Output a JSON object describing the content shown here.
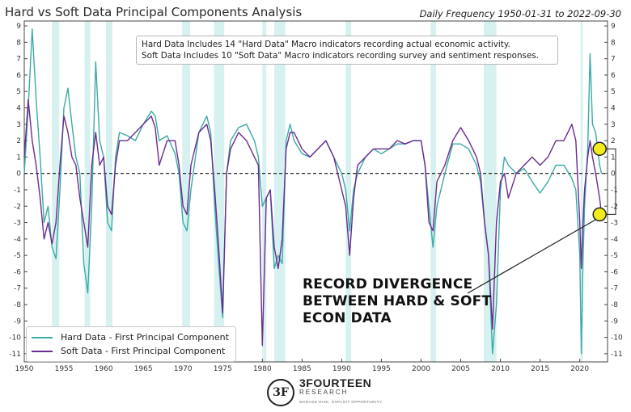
{
  "header": {
    "title": "Hard vs Soft Data Principal Components Analysis",
    "range": "Daily Frequency 1950-01-31 to 2022-09-30"
  },
  "note": {
    "line1": "Hard Data Includes 14 \"Hard Data\" Macro indicators recording actual economic activity.",
    "line2": "Soft Data Includes 10 \"Soft Data\" Macro indicators recording survey and sentiment responses."
  },
  "annotation": {
    "line1": "RECORD DIVERGENCE",
    "line2": "BETWEEN HARD & SOFT",
    "line3": "ECON DATA"
  },
  "logo": {
    "mark": "3F",
    "name": "3FOURTEEN",
    "sub": "RESEARCH",
    "tagline": "MANAGE RISK. EXPLOIT OPPORTUNITY."
  },
  "colors": {
    "hard": "#3aaaa6",
    "soft": "#6a2c91",
    "shade": "#d6f1ef",
    "highlight": "#f2ec1c"
  },
  "chart_data": {
    "type": "line",
    "xlim": [
      1950,
      2023.5
    ],
    "ylim": [
      -11.5,
      9.3
    ],
    "x_ticks": [
      1950,
      1955,
      1960,
      1965,
      1970,
      1975,
      1980,
      1985,
      1990,
      1995,
      2000,
      2005,
      2010,
      2015,
      2020
    ],
    "y_ticks": [
      -11,
      -10,
      -9,
      -8,
      -7,
      -6,
      -5,
      -4,
      -3,
      -2,
      -1,
      0,
      1,
      2,
      3,
      4,
      5,
      6,
      7,
      8,
      9
    ],
    "zero_line": "dashed",
    "recessions": [
      [
        1953.5,
        1954.4
      ],
      [
        1957.6,
        1958.3
      ],
      [
        1960.3,
        1961.1
      ],
      [
        1969.9,
        1970.9
      ],
      [
        1973.9,
        1975.2
      ],
      [
        1980.0,
        1980.5
      ],
      [
        1981.5,
        1982.9
      ],
      [
        1990.5,
        1991.2
      ],
      [
        2001.2,
        2001.9
      ],
      [
        2007.9,
        2009.5
      ],
      [
        2020.1,
        2020.4
      ]
    ],
    "series": [
      {
        "name": "Hard Data - First Principal Component",
        "x": [
          1950.0,
          1950.5,
          1951.0,
          1951.5,
          1952.0,
          1952.5,
          1953.0,
          1953.5,
          1954.0,
          1954.5,
          1955.0,
          1955.5,
          1956.0,
          1956.5,
          1957.0,
          1957.5,
          1958.0,
          1958.5,
          1959.0,
          1959.5,
          1960.0,
          1960.5,
          1961.0,
          1961.5,
          1962.0,
          1963.0,
          1964.0,
          1965.0,
          1966.0,
          1966.5,
          1967.0,
          1968.0,
          1969.0,
          1969.5,
          1970.0,
          1970.5,
          1971.0,
          1972.0,
          1973.0,
          1973.5,
          1974.0,
          1974.5,
          1975.0,
          1975.5,
          1976.0,
          1977.0,
          1978.0,
          1979.0,
          1979.5,
          1980.0,
          1980.5,
          1981.0,
          1981.5,
          1982.0,
          1982.5,
          1983.0,
          1983.5,
          1984.0,
          1985.0,
          1986.0,
          1987.0,
          1988.0,
          1989.0,
          1990.0,
          1990.5,
          1991.0,
          1991.5,
          1992.0,
          1993.0,
          1994.0,
          1995.0,
          1996.0,
          1997.0,
          1998.0,
          1999.0,
          2000.0,
          2000.5,
          2001.0,
          2001.5,
          2002.0,
          2003.0,
          2004.0,
          2005.0,
          2006.0,
          2007.0,
          2007.5,
          2008.0,
          2008.5,
          2009.0,
          2009.5,
          2010.0,
          2010.5,
          2011.0,
          2012.0,
          2013.0,
          2014.0,
          2015.0,
          2016.0,
          2017.0,
          2018.0,
          2019.0,
          2019.5,
          2020.0,
          2020.2,
          2020.4,
          2020.6,
          2021.0,
          2021.3,
          2021.6,
          2022.0,
          2022.5,
          2022.75
        ],
        "y": [
          0.0,
          4.0,
          8.8,
          4.5,
          1.0,
          -3.0,
          -2.0,
          -4.5,
          -5.2,
          -1.0,
          4.0,
          5.2,
          3.0,
          1.0,
          0.0,
          -5.5,
          -7.3,
          -2.0,
          6.8,
          2.0,
          1.0,
          -3.0,
          -3.5,
          1.0,
          2.5,
          2.3,
          2.0,
          3.0,
          3.8,
          3.5,
          2.0,
          2.3,
          1.2,
          0.0,
          -3.0,
          -3.5,
          -1.0,
          2.5,
          3.5,
          2.5,
          -2.0,
          -5.5,
          -8.8,
          0.0,
          2.0,
          2.8,
          3.0,
          2.0,
          1.0,
          -2.0,
          -1.5,
          -1.0,
          -5.8,
          -5.0,
          -5.5,
          2.0,
          3.0,
          2.0,
          1.2,
          1.0,
          1.5,
          2.0,
          1.0,
          0.0,
          -1.0,
          -3.5,
          -1.0,
          0.0,
          1.0,
          1.5,
          1.2,
          1.5,
          1.8,
          1.8,
          2.0,
          2.0,
          0.5,
          -2.0,
          -4.5,
          -2.0,
          0.0,
          1.8,
          1.8,
          1.5,
          0.5,
          -0.5,
          -3.0,
          -5.0,
          -11.0,
          -8.0,
          -1.0,
          1.0,
          0.5,
          0.0,
          0.3,
          -0.5,
          -1.2,
          -0.5,
          0.5,
          0.5,
          -0.3,
          -1.0,
          -5.0,
          -11.0,
          -5.5,
          -2.0,
          1.5,
          7.3,
          3.0,
          2.5,
          0.5,
          0.0
        ]
      },
      {
        "name": "Soft Data - First Principal Component",
        "x": [
          1950.0,
          1950.5,
          1951.0,
          1951.5,
          1952.0,
          1952.5,
          1953.0,
          1953.5,
          1954.0,
          1954.5,
          1955.0,
          1955.5,
          1956.0,
          1956.5,
          1957.0,
          1957.5,
          1958.0,
          1958.5,
          1959.0,
          1959.5,
          1960.0,
          1960.5,
          1961.0,
          1961.5,
          1962.0,
          1963.0,
          1964.0,
          1965.0,
          1966.0,
          1966.5,
          1967.0,
          1968.0,
          1969.0,
          1969.5,
          1970.0,
          1970.5,
          1971.0,
          1972.0,
          1973.0,
          1973.5,
          1974.0,
          1974.5,
          1975.0,
          1975.5,
          1976.0,
          1977.0,
          1978.0,
          1979.0,
          1979.5,
          1980.0,
          1980.5,
          1981.0,
          1981.5,
          1982.0,
          1982.5,
          1983.0,
          1983.5,
          1984.0,
          1985.0,
          1986.0,
          1987.0,
          1988.0,
          1989.0,
          1990.0,
          1990.5,
          1991.0,
          1991.5,
          1992.0,
          1993.0,
          1994.0,
          1995.0,
          1996.0,
          1997.0,
          1998.0,
          1999.0,
          2000.0,
          2000.5,
          2001.0,
          2001.5,
          2002.0,
          2003.0,
          2004.0,
          2005.0,
          2006.0,
          2007.0,
          2007.5,
          2008.0,
          2008.5,
          2009.0,
          2009.5,
          2010.0,
          2010.5,
          2011.0,
          2012.0,
          2013.0,
          2014.0,
          2015.0,
          2016.0,
          2017.0,
          2018.0,
          2019.0,
          2019.5,
          2020.0,
          2020.2,
          2020.4,
          2020.6,
          2021.0,
          2021.3,
          2021.6,
          2022.0,
          2022.5,
          2022.75
        ],
        "y": [
          1.0,
          4.5,
          2.0,
          0.5,
          -1.5,
          -4.0,
          -3.0,
          -4.3,
          -3.0,
          0.5,
          3.5,
          2.5,
          1.0,
          0.5,
          -1.5,
          -3.0,
          -4.5,
          0.5,
          2.5,
          0.5,
          1.0,
          -2.0,
          -2.5,
          0.5,
          2.0,
          2.0,
          2.5,
          3.0,
          3.5,
          2.8,
          0.5,
          2.0,
          2.0,
          0.5,
          -2.0,
          -2.5,
          0.5,
          2.5,
          3.0,
          2.0,
          -1.0,
          -4.5,
          -8.5,
          0.0,
          1.5,
          2.5,
          2.0,
          1.0,
          0.5,
          -10.5,
          -1.5,
          -1.0,
          -4.5,
          -5.8,
          -4.0,
          1.5,
          2.5,
          2.5,
          1.5,
          1.0,
          1.5,
          2.0,
          1.0,
          -1.0,
          -2.0,
          -5.0,
          -1.5,
          0.5,
          1.0,
          1.5,
          1.5,
          1.5,
          2.0,
          1.8,
          2.0,
          2.0,
          0.5,
          -3.0,
          -3.5,
          -0.5,
          0.5,
          2.0,
          2.8,
          2.0,
          1.0,
          0.0,
          -3.0,
          -5.0,
          -9.5,
          -3.0,
          -0.5,
          0.0,
          -1.5,
          0.0,
          0.5,
          1.0,
          0.5,
          1.0,
          2.0,
          2.0,
          3.0,
          2.0,
          -3.0,
          -5.8,
          -3.0,
          -1.0,
          1.0,
          2.0,
          1.0,
          0.0,
          -1.5,
          -2.5
        ]
      }
    ]
  }
}
